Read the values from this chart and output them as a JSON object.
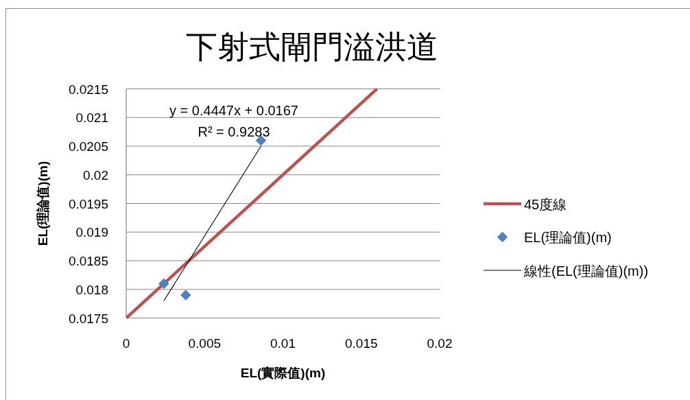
{
  "chart_data": {
    "type": "scatter",
    "title": "下射式閘門溢洪道",
    "xlabel": "EL(實際值)(m)",
    "ylabel": "EL(理論值)(m)",
    "series": [
      {
        "name": "45度線",
        "type": "line",
        "color": "#c0504d",
        "x": [
          0,
          0.016
        ],
        "values": [
          0.0175,
          0.0215
        ]
      },
      {
        "name": "EL(理論值)(m)",
        "type": "scatter",
        "color": "#4f81bd",
        "marker": "diamond",
        "x": [
          0.0024,
          0.0038,
          0.0086
        ],
        "values": [
          0.0181,
          0.0179,
          0.0206
        ]
      },
      {
        "name": "線性(EL(理論值)(m))",
        "type": "line",
        "color": "#000000",
        "x": [
          0.0024,
          0.0086
        ],
        "values": [
          0.0178,
          0.0205
        ]
      }
    ],
    "annotations": [
      "y = 0.4447x + 0.0167",
      "R² = 0.9283"
    ],
    "xlim": [
      0,
      0.02
    ],
    "ylim": [
      0.0175,
      0.0215
    ],
    "xticks": [
      0,
      0.005,
      0.01,
      0.015,
      0.02
    ],
    "yticks": [
      0.0175,
      0.018,
      0.0185,
      0.019,
      0.0195,
      0.02,
      0.0205,
      0.021,
      0.0215
    ],
    "grid": "y",
    "legend": "right"
  }
}
